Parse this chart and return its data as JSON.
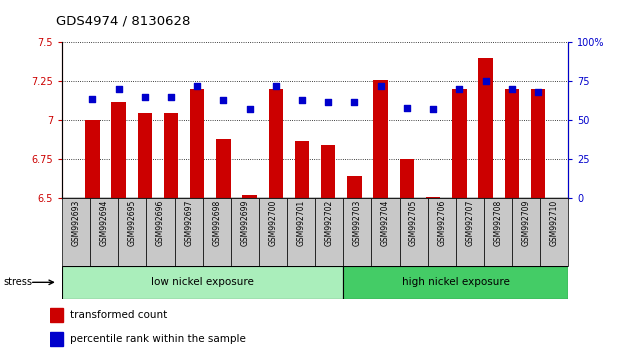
{
  "title": "GDS4974 / 8130628",
  "samples": [
    "GSM992693",
    "GSM992694",
    "GSM992695",
    "GSM992696",
    "GSM992697",
    "GSM992698",
    "GSM992699",
    "GSM992700",
    "GSM992701",
    "GSM992702",
    "GSM992703",
    "GSM992704",
    "GSM992705",
    "GSM992706",
    "GSM992707",
    "GSM992708",
    "GSM992709",
    "GSM992710"
  ],
  "bar_values": [
    7.0,
    7.12,
    7.05,
    7.05,
    7.2,
    6.88,
    6.52,
    7.2,
    6.87,
    6.84,
    6.64,
    7.26,
    6.75,
    6.51,
    7.2,
    7.4,
    7.2,
    7.2
  ],
  "dot_values": [
    64,
    70,
    65,
    65,
    72,
    63,
    57,
    72,
    63,
    62,
    62,
    72,
    58,
    57,
    70,
    75,
    70,
    68
  ],
  "ylim_left": [
    6.5,
    7.5
  ],
  "ylim_right": [
    0,
    100
  ],
  "bar_color": "#cc0000",
  "dot_color": "#0000cc",
  "bar_bottom": 6.5,
  "bg_color": "#ffffff",
  "xticklabel_bg": "#c8c8c8",
  "low_nickel_label": "low nickel exposure",
  "high_nickel_label": "high nickel exposure",
  "low_nickel_count": 10,
  "stress_label": "stress",
  "legend_bar": "transformed count",
  "legend_dot": "percentile rank within the sample",
  "left_ylabel_color": "#cc0000",
  "right_ylabel_color": "#0000cc",
  "right_yticks": [
    0,
    25,
    50,
    75,
    100
  ],
  "right_yticklabels": [
    "0",
    "25",
    "50",
    "75",
    "100%"
  ],
  "left_yticks": [
    6.5,
    6.75,
    7.0,
    7.25,
    7.5
  ],
  "left_yticklabels": [
    "6.5",
    "6.75",
    "7",
    "7.25",
    "7.5"
  ],
  "low_nickel_color": "#aaeebb",
  "high_nickel_color": "#44cc66"
}
